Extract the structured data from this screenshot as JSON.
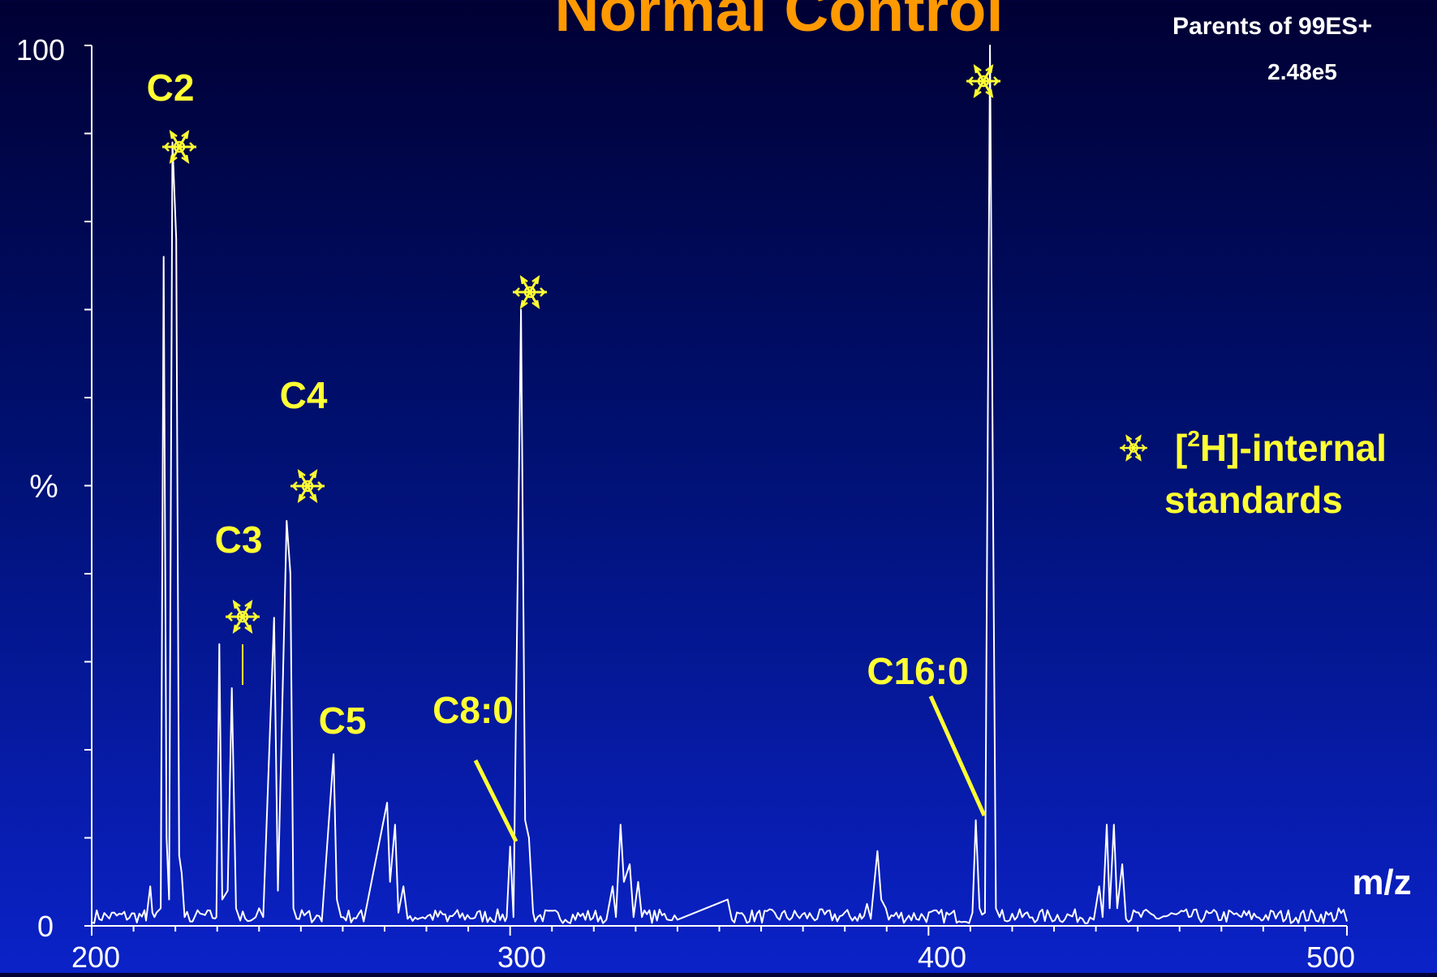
{
  "chart_data": {
    "type": "line",
    "title": "Normal Control",
    "instrument_label": "Parents of 99ES+",
    "intensity_label": "2.48e5",
    "xlabel": "m/z",
    "ylabel": "%",
    "xlim": [
      200,
      500
    ],
    "ylim": [
      0,
      100
    ],
    "x_ticks": [
      200,
      300,
      400,
      500
    ],
    "y_ticks": [
      0,
      100
    ],
    "series": [
      {
        "values": [
          [
            200,
            0.4
          ],
          [
            213,
            0.6
          ],
          [
            214,
            4.5
          ],
          [
            214.5,
            1.5
          ],
          [
            215,
            1
          ],
          [
            215.5,
            1.5
          ],
          [
            216.5,
            2
          ],
          [
            217.2,
            76
          ],
          [
            217.9,
            10
          ],
          [
            218.5,
            3
          ],
          [
            219.3,
            89
          ],
          [
            220.2,
            78
          ],
          [
            220.9,
            8
          ],
          [
            221.5,
            6
          ],
          [
            222.2,
            1
          ],
          [
            223.5,
            0.5
          ],
          [
            229.8,
            1
          ],
          [
            230.5,
            32
          ],
          [
            231.2,
            3
          ],
          [
            232.5,
            4
          ],
          [
            233.5,
            27
          ],
          [
            234.5,
            2
          ],
          [
            235.5,
            0.6
          ],
          [
            238,
            0.6
          ],
          [
            240,
            2
          ],
          [
            241,
            1
          ],
          [
            243.6,
            35
          ],
          [
            244.5,
            4
          ],
          [
            246.6,
            46
          ],
          [
            247.5,
            40
          ],
          [
            248.2,
            2
          ],
          [
            249,
            0.8
          ],
          [
            255,
            0.5
          ],
          [
            257.8,
            19.5
          ],
          [
            258.6,
            3
          ],
          [
            259.6,
            1
          ],
          [
            265,
            0.5
          ],
          [
            270.6,
            14
          ],
          [
            271.3,
            5
          ],
          [
            272.5,
            11.5
          ],
          [
            273.3,
            1.5
          ],
          [
            274.5,
            4.5
          ],
          [
            275.5,
            0.8
          ],
          [
            285,
            0.5
          ],
          [
            299.2,
            1
          ],
          [
            300,
            9
          ],
          [
            300.8,
            1
          ],
          [
            302.6,
            70
          ],
          [
            303.6,
            12
          ],
          [
            304.5,
            10
          ],
          [
            305.5,
            1.5
          ],
          [
            306,
            0.5
          ],
          [
            323,
            0.7
          ],
          [
            324.5,
            4.5
          ],
          [
            325.3,
            1
          ],
          [
            326.4,
            11.5
          ],
          [
            327.2,
            5
          ],
          [
            328.6,
            7
          ],
          [
            329.5,
            1
          ],
          [
            330.6,
            5
          ],
          [
            331.5,
            1
          ],
          [
            340,
            0.7
          ],
          [
            352,
            3
          ],
          [
            353,
            0.7
          ],
          [
            384,
            0.8
          ],
          [
            385.3,
            2.5
          ],
          [
            386.2,
            0.8
          ],
          [
            387.8,
            8.5
          ],
          [
            388.7,
            3
          ],
          [
            389.8,
            2
          ],
          [
            390.5,
            0.7
          ],
          [
            410.5,
            1.5
          ],
          [
            411.3,
            12
          ],
          [
            412.2,
            2
          ],
          [
            413.5,
            1.5
          ],
          [
            414.7,
            100
          ],
          [
            415.6,
            35
          ],
          [
            416.1,
            2
          ],
          [
            417,
            1
          ],
          [
            439.5,
            0.7
          ],
          [
            440.8,
            4.5
          ],
          [
            441.6,
            1
          ],
          [
            442.6,
            11.5
          ],
          [
            443.3,
            2
          ],
          [
            444.3,
            11.5
          ],
          [
            445.1,
            2
          ],
          [
            446.3,
            7
          ],
          [
            447.2,
            0.8
          ],
          [
            455,
            0.8
          ],
          [
            480,
            0.7
          ],
          [
            498,
            2
          ],
          [
            500,
            0.5
          ]
        ]
      }
    ],
    "annotations": [
      {
        "text": "C2",
        "x": 219.3
      },
      {
        "text": "C3",
        "x": 233.5
      },
      {
        "text": "C4",
        "x": 246.6
      },
      {
        "text": "C5",
        "x": 257.8
      },
      {
        "text": "C8:0",
        "x": 300
      },
      {
        "text": "C16:0",
        "x": 411.3
      }
    ],
    "internal_standard_peaks": [
      219.3,
      233.5,
      246.6,
      302.6,
      414.7
    ],
    "legend": {
      "symbol": "snowflake-icon",
      "superscript": "2",
      "line1_pre": "[",
      "line1_post": "H]-internal",
      "line2": "standards",
      "placement": "right"
    },
    "colors": {
      "trace": "#ffffff",
      "label": "#ffff33",
      "axis": "#ffffff"
    }
  }
}
